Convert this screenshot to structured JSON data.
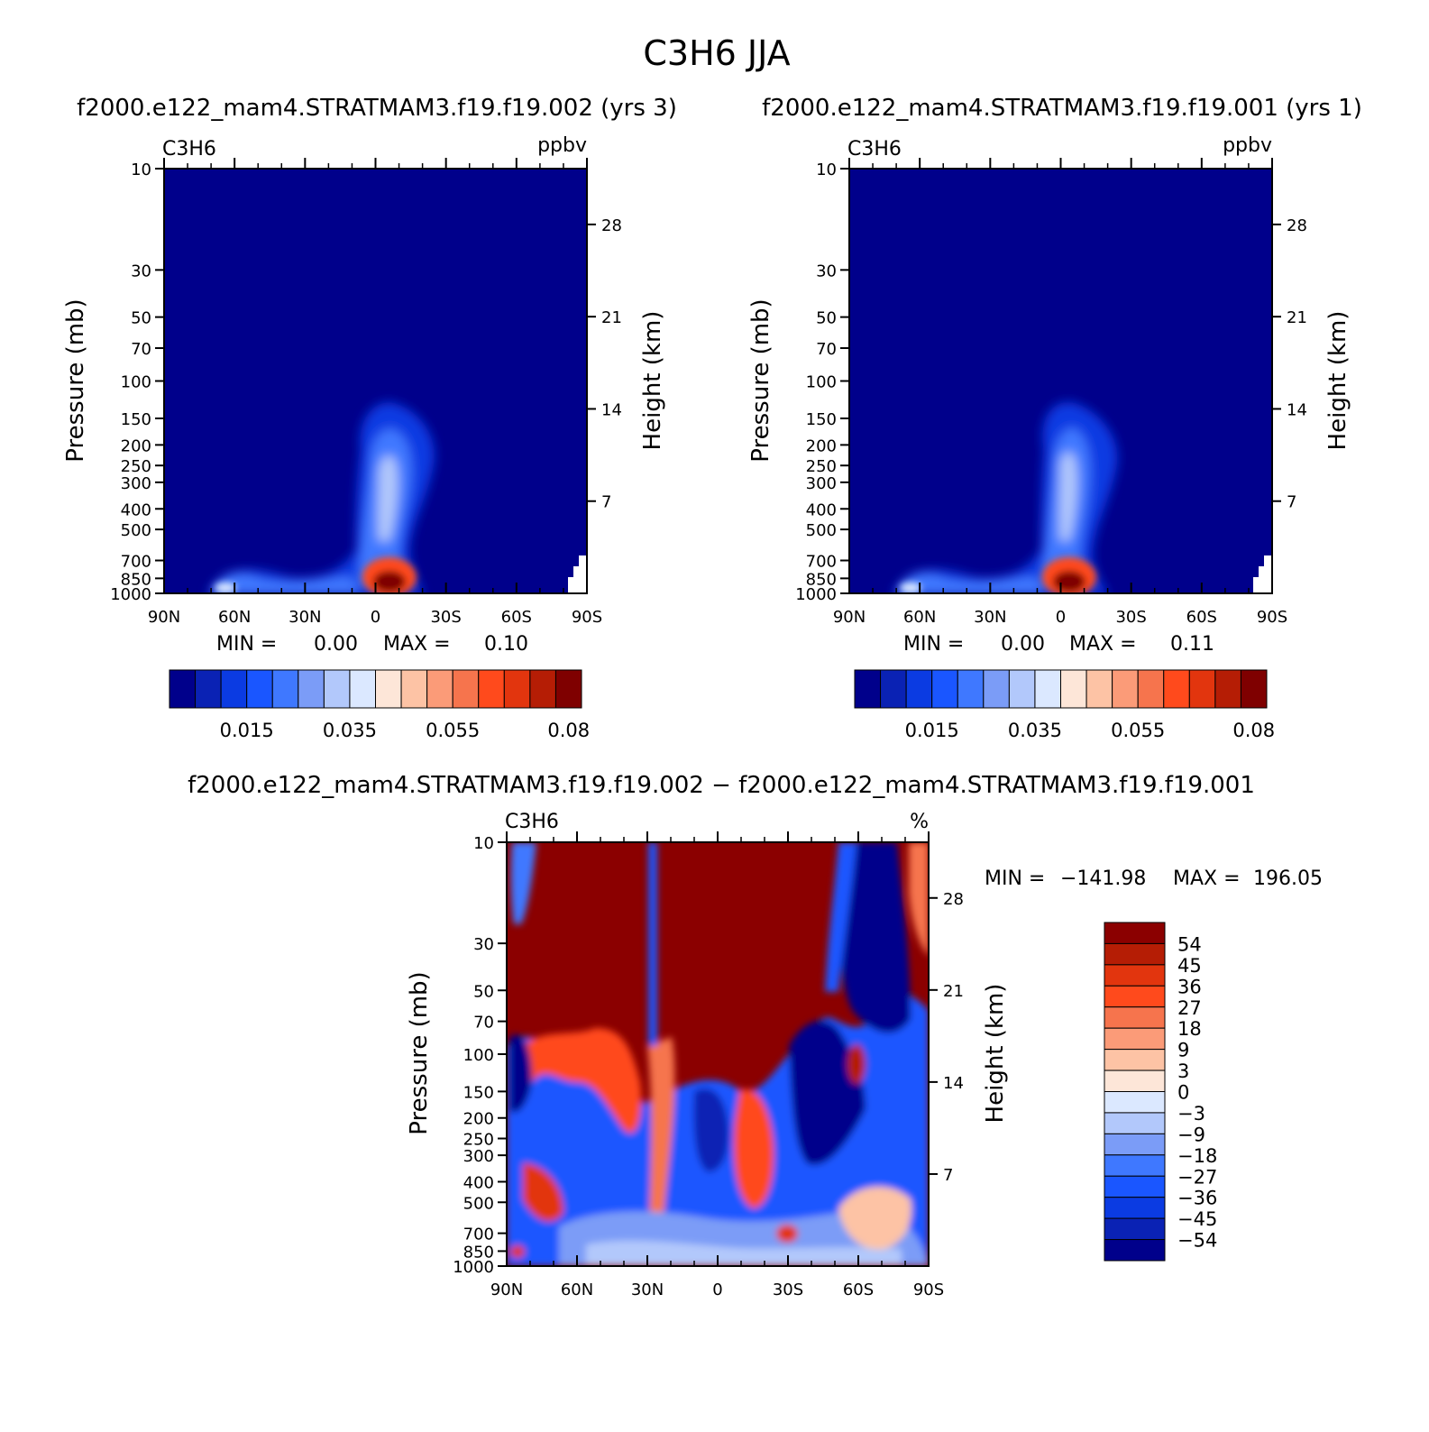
{
  "figure": {
    "title": "C3H6 JJA"
  },
  "colors": {
    "field_bg": "#00008b",
    "field_mid": "#1a3cff",
    "field_light": "#8eaefc",
    "field_pale": "#dbe8ff",
    "hot_red": "#ff4500",
    "dark_red": "#8b0000"
  },
  "panels": [
    {
      "header": "f2000.e122_mam4.STRATMAM3.f19.f19.002 (yrs 3)",
      "var_label": "C3H6",
      "units": "ppbv",
      "stats": {
        "min_label": "MIN =",
        "min": "0.00",
        "max_label": "MAX =",
        "max": "0.10"
      }
    },
    {
      "header": "f2000.e122_mam4.STRATMAM3.f19.f19.001 (yrs 1)",
      "var_label": "C3H6",
      "units": "ppbv",
      "stats": {
        "min_label": "MIN =",
        "min": "0.00",
        "max_label": "MAX =",
        "max": "0.11"
      }
    },
    {
      "header": "f2000.e122_mam4.STRATMAM3.f19.f19.002 − f2000.e122_mam4.STRATMAM3.f19.f19.001",
      "var_label": "C3H6",
      "units": "%",
      "stats": {
        "min_label": "MIN =",
        "min": "−141.98",
        "max_label": "MAX =",
        "max": "196.05"
      }
    }
  ],
  "chart_data": [
    {
      "type": "heatmap",
      "title": "C3H6",
      "units": "ppbv",
      "xlabel": "",
      "ylabel": "Pressure (mb)",
      "ylabel_right": "Height (km)",
      "x_ticks": [
        "90N",
        "60N",
        "30N",
        "0",
        "30S",
        "60S",
        "90S"
      ],
      "y_ticks": [
        "10",
        "30",
        "50",
        "70",
        "100",
        "150",
        "200",
        "250",
        "300",
        "400",
        "500",
        "700",
        "850",
        "1000"
      ],
      "y_right_ticks": [
        "28",
        "21",
        "14",
        "7"
      ],
      "y_scale": "log",
      "ylim": [
        1000,
        10
      ],
      "min": 0.0,
      "max": 0.1,
      "colorbar_ticks": [
        "0.015",
        "0.035",
        "0.055",
        "0.08"
      ],
      "colorbar_colors": [
        "#00008b",
        "#0a22b4",
        "#0b3be2",
        "#1a56ff",
        "#3f78ff",
        "#7b9cf7",
        "#b2c8fb",
        "#dbe8ff",
        "#fde6d8",
        "#fdc3a5",
        "#fb9b78",
        "#f6744d",
        "#ff4a1c",
        "#e2350e",
        "#b51d05",
        "#7f0000"
      ]
    },
    {
      "type": "heatmap",
      "title": "C3H6",
      "units": "ppbv",
      "xlabel": "",
      "ylabel": "Pressure (mb)",
      "ylabel_right": "Height (km)",
      "x_ticks": [
        "90N",
        "60N",
        "30N",
        "0",
        "30S",
        "60S",
        "90S"
      ],
      "y_ticks": [
        "10",
        "30",
        "50",
        "70",
        "100",
        "150",
        "200",
        "250",
        "300",
        "400",
        "500",
        "700",
        "850",
        "1000"
      ],
      "y_right_ticks": [
        "28",
        "21",
        "14",
        "7"
      ],
      "y_scale": "log",
      "ylim": [
        1000,
        10
      ],
      "min": 0.0,
      "max": 0.11,
      "colorbar_ticks": [
        "0.015",
        "0.035",
        "0.055",
        "0.08"
      ],
      "colorbar_colors": [
        "#00008b",
        "#0a22b4",
        "#0b3be2",
        "#1a56ff",
        "#3f78ff",
        "#7b9cf7",
        "#b2c8fb",
        "#dbe8ff",
        "#fde6d8",
        "#fdc3a5",
        "#fb9b78",
        "#f6744d",
        "#ff4a1c",
        "#e2350e",
        "#b51d05",
        "#7f0000"
      ]
    },
    {
      "type": "heatmap",
      "title": "C3H6",
      "units": "%",
      "xlabel": "",
      "ylabel": "Pressure (mb)",
      "ylabel_right": "Height (km)",
      "x_ticks": [
        "90N",
        "60N",
        "30N",
        "0",
        "30S",
        "60S",
        "90S"
      ],
      "y_ticks": [
        "10",
        "30",
        "50",
        "70",
        "100",
        "150",
        "200",
        "250",
        "300",
        "400",
        "500",
        "700",
        "850",
        "1000"
      ],
      "y_right_ticks": [
        "28",
        "21",
        "14",
        "7"
      ],
      "y_scale": "log",
      "ylim": [
        1000,
        10
      ],
      "min": -141.98,
      "max": 196.05,
      "colorbar_ticks": [
        "54",
        "45",
        "36",
        "27",
        "18",
        "9",
        "3",
        "0",
        "−3",
        "−9",
        "−18",
        "−27",
        "−36",
        "−45",
        "−54"
      ],
      "colorbar_colors": [
        "#8b0000",
        "#b51d05",
        "#e2350e",
        "#ff4a1c",
        "#f6744d",
        "#fb9b78",
        "#fdc3a5",
        "#fde6d8",
        "#dbe8ff",
        "#b2c8fb",
        "#7b9cf7",
        "#3f78ff",
        "#1a56ff",
        "#0b3be2",
        "#0a22b4",
        "#00008b"
      ]
    }
  ]
}
